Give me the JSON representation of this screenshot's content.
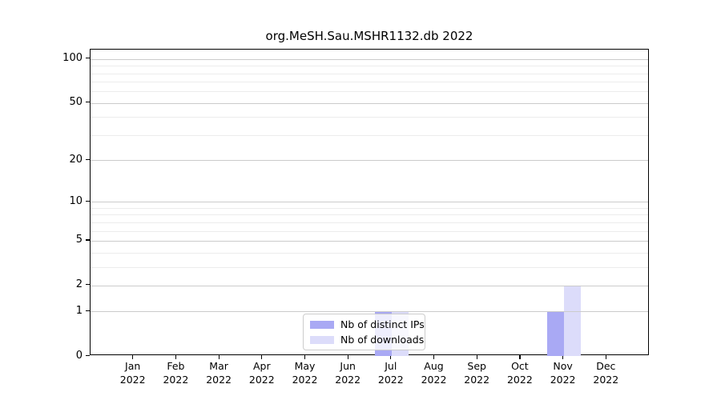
{
  "chart_data": {
    "type": "bar",
    "title": "org.MeSH.Sau.MSHR1132.db 2022",
    "categories": [
      "Jan",
      "Feb",
      "Mar",
      "Apr",
      "May",
      "Jun",
      "Jul",
      "Aug",
      "Sep",
      "Oct",
      "Nov",
      "Dec"
    ],
    "category_year": "2022",
    "series": [
      {
        "name": "Nb of distinct IPs",
        "color": "#a9a9f4",
        "values": [
          0,
          0,
          0,
          0,
          0,
          0,
          1,
          0,
          0,
          0,
          1,
          0
        ]
      },
      {
        "name": "Nb of downloads",
        "color": "#dcdcfa",
        "values": [
          0,
          0,
          0,
          0,
          0,
          0,
          1,
          0,
          0,
          0,
          2,
          0
        ]
      }
    ],
    "xlabel": "",
    "ylabel": "",
    "y_scale": "log1p",
    "ylim": [
      0,
      116
    ],
    "y_major_ticks": [
      0,
      1,
      2,
      5,
      10,
      20,
      50,
      100
    ],
    "y_minor_gridlines": [
      3,
      4,
      6,
      7,
      8,
      9,
      30,
      40,
      60,
      70,
      80,
      90
    ],
    "grid": "horizontal",
    "legend_position": "lower center",
    "colors": {
      "major_grid": "#cbcbcb",
      "minor_grid": "#ececec",
      "axis_line": "#000000",
      "background": "#ffffff"
    }
  }
}
